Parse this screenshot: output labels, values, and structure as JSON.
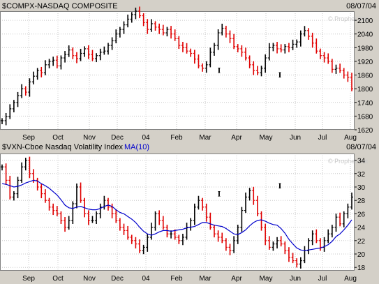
{
  "chart_data": [
    {
      "type": "ohlc",
      "title": "$COMPX-NASDAQ COMPOSITE",
      "date_label": "08/07/04",
      "watermark": "© Prophet.Net",
      "x_tick_labels": [
        "Sep",
        "Oct",
        "Nov",
        "Dec",
        "04",
        "Feb",
        "Mar",
        "Apr",
        "May",
        "Jun",
        "Jul",
        "Aug"
      ],
      "y_tick_labels": [
        "2100",
        "2040",
        "1980",
        "1920",
        "1860",
        "1800",
        "1740",
        "1680",
        "1620"
      ],
      "ylim": [
        1620,
        2140
      ],
      "annotations": [
        {
          "text": "I",
          "x_label": "Mar",
          "value": 1870
        },
        {
          "text": "I",
          "x_label": "May",
          "value": 1850
        }
      ],
      "grid": true,
      "colors": {
        "up": "#000000",
        "down": "#e00000",
        "background": "#ffffff"
      },
      "series": [
        {
          "values": [
            1660,
            1678,
            1712,
            1740,
            1770,
            1800,
            1785,
            1830,
            1855,
            1880,
            1870,
            1905,
            1920,
            1925,
            1900,
            1935,
            1950,
            1970,
            1945,
            1932,
            1955,
            1975,
            1950,
            1932,
            1945,
            1960,
            1965,
            1990,
            2010,
            2040,
            2060,
            2080,
            2105,
            2125,
            2140,
            2120,
            2090,
            2060,
            2085,
            2070,
            2060,
            2045,
            2060,
            2040,
            2020,
            1990,
            1980,
            1965,
            1955,
            1930,
            1900,
            1890,
            1905,
            1960,
            1990,
            2045,
            2065,
            2040,
            2020,
            1985,
            1975,
            1960,
            1935,
            1905,
            1880,
            1870,
            1890,
            1935,
            1980,
            1990,
            1975,
            1970,
            1985,
            1980,
            1995,
            2005,
            2040,
            2055,
            2030,
            2000,
            1965,
            1945,
            1935,
            1920,
            1885,
            1890,
            1880,
            1860,
            1850,
            1800
          ]
        }
      ]
    },
    {
      "type": "ohlc",
      "title": "$VXN-Cboe Nasdaq Volatility Index",
      "ma_label": "MA(10)",
      "date_label": "08/07/04",
      "watermark": "© Prophet.Net",
      "x_tick_labels": [
        "Sep",
        "Oct",
        "Nov",
        "Dec",
        "04",
        "Feb",
        "Mar",
        "Apr",
        "May",
        "Jun",
        "Jul",
        "Aug"
      ],
      "y_tick_labels": [
        "34",
        "32",
        "30",
        "28",
        "26",
        "24",
        "22",
        "20",
        "18"
      ],
      "ylim": [
        17.5,
        35
      ],
      "annotations": [
        {
          "text": "I",
          "x_label": "Mar",
          "value": 28.6
        },
        {
          "text": "I",
          "x_label": "May",
          "value": 29.8
        }
      ],
      "grid": true,
      "colors": {
        "up": "#000000",
        "down": "#e00000",
        "ma": "#0000cc",
        "background": "#ffffff"
      },
      "series": [
        {
          "name": "VXN",
          "values": [
            33,
            31,
            28.5,
            29,
            31,
            33,
            34,
            32,
            31,
            30,
            29,
            28,
            27,
            26.5,
            26,
            25,
            24,
            25,
            27.5,
            30,
            28,
            26,
            25,
            25,
            26,
            27,
            28,
            27,
            26,
            25,
            24,
            23.5,
            22.5,
            22,
            21.5,
            20.5,
            21,
            22.5,
            24,
            26,
            25,
            24,
            23,
            23,
            22.5,
            22,
            22.5,
            24,
            25,
            27,
            28,
            27,
            25.5,
            24,
            23,
            22.5,
            22,
            21,
            20.5,
            22,
            24,
            26.5,
            28.5,
            29.5,
            28,
            26,
            24,
            22,
            21,
            21.5,
            22,
            21.5,
            20.5,
            19.5,
            19,
            18.5,
            19,
            20.5,
            22,
            23,
            22,
            21,
            22,
            23,
            24,
            25.5,
            24.5,
            26,
            27,
            28.5
          ]
        },
        {
          "name": "MA(10)",
          "values": [
            30.5,
            30.4,
            30.2,
            30.0,
            30.1,
            30.3,
            30.6,
            30.8,
            31.0,
            30.9,
            30.5,
            30.2,
            29.8,
            29.3,
            28.8,
            28.1,
            27.3,
            26.9,
            26.8,
            27.0,
            27.1,
            26.9,
            26.7,
            26.6,
            26.6,
            26.8,
            27.1,
            27.3,
            27.1,
            26.6,
            26.2,
            26.0,
            25.6,
            25.2,
            24.7,
            24.0,
            23.4,
            23.0,
            22.8,
            23.0,
            23.3,
            23.5,
            23.5,
            23.4,
            23.5,
            23.6,
            23.7,
            23.9,
            24.0,
            24.1,
            24.4,
            24.7,
            24.7,
            24.5,
            24.3,
            24.2,
            24.1,
            23.8,
            23.4,
            23.0,
            22.9,
            23.2,
            23.6,
            24.2,
            24.7,
            25.0,
            25.1,
            24.9,
            24.6,
            24.4,
            24.3,
            23.8,
            23.1,
            22.2,
            21.5,
            20.9,
            20.6,
            20.5,
            20.6,
            20.7,
            20.8,
            20.9,
            21.1,
            21.4,
            21.9,
            22.6,
            23.0,
            23.6,
            24.3,
            25.1
          ]
        }
      ]
    }
  ]
}
